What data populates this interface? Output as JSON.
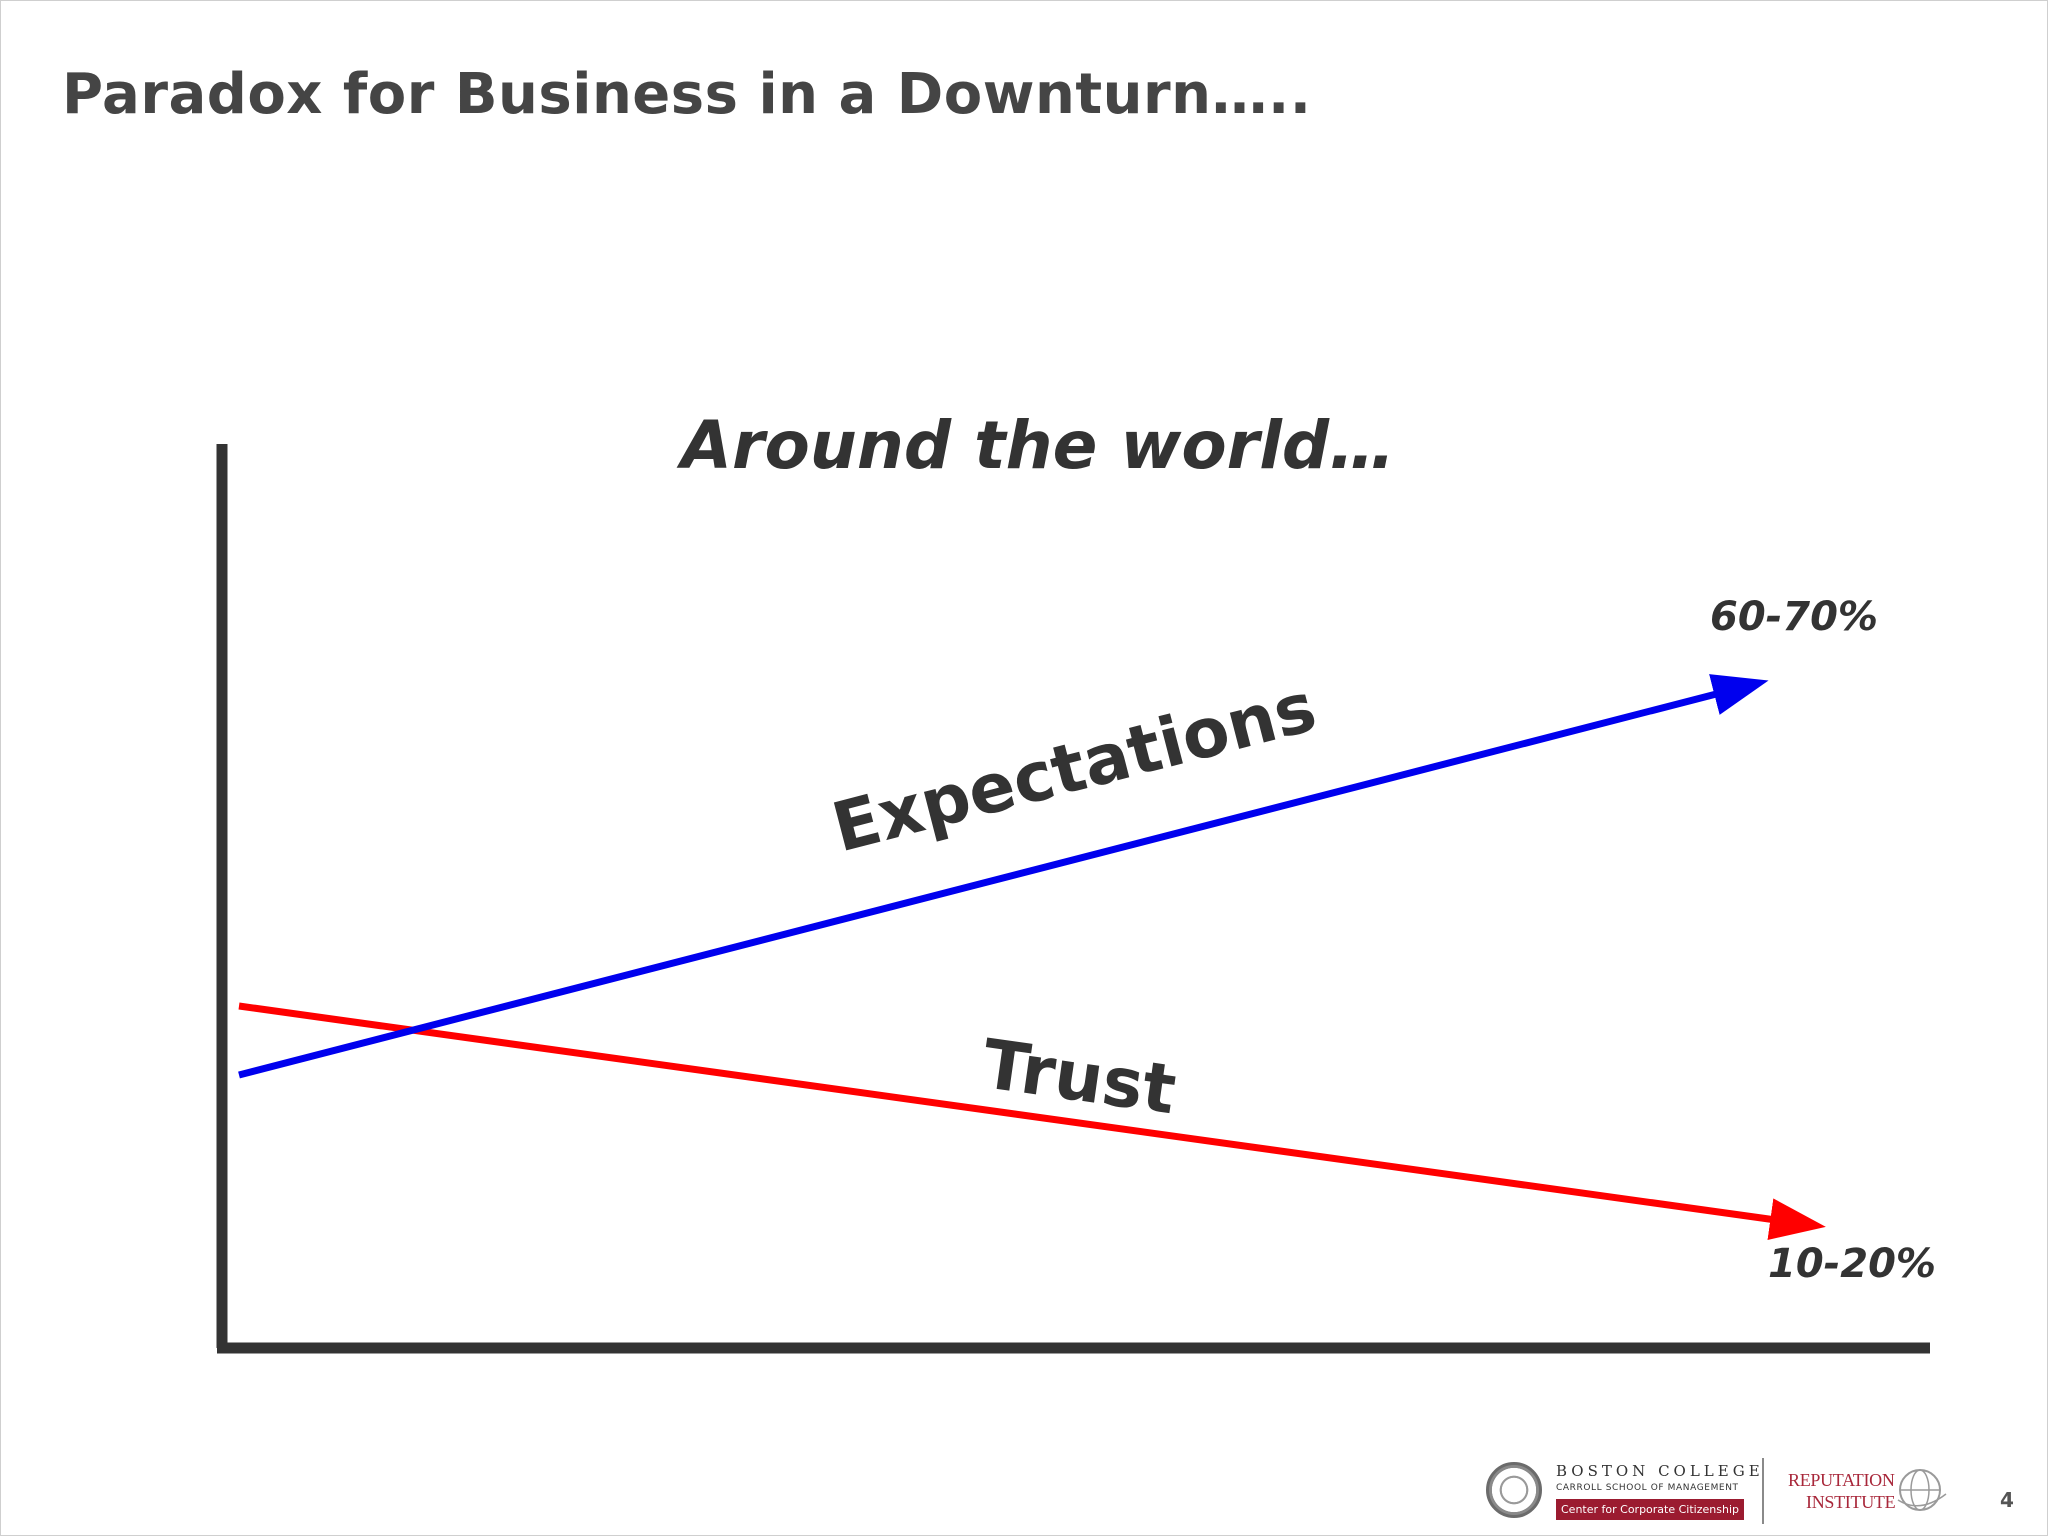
{
  "slide": {
    "title": "Paradox for Business in a Downturn…..",
    "page_number": "4"
  },
  "diagram": {
    "heading": "Around the world…",
    "series": [
      {
        "name": "Expectations",
        "end_label": "60-70%",
        "color": "#0000ee",
        "direction": "rising"
      },
      {
        "name": "Trust",
        "end_label": "10-20%",
        "color": "#ff0000",
        "direction": "falling"
      }
    ],
    "axis_color": "#333333"
  },
  "footer": {
    "bc_name": "BOSTON COLLEGE",
    "bc_school": "CARROLL SCHOOL OF MANAGEMENT",
    "bc_center": "Center for Corporate Citizenship",
    "ri_line1": "REPUTATION",
    "ri_line2": "INSTITUTE",
    "seal_icon": "seal-icon",
    "globe_icon": "globe-icon"
  }
}
